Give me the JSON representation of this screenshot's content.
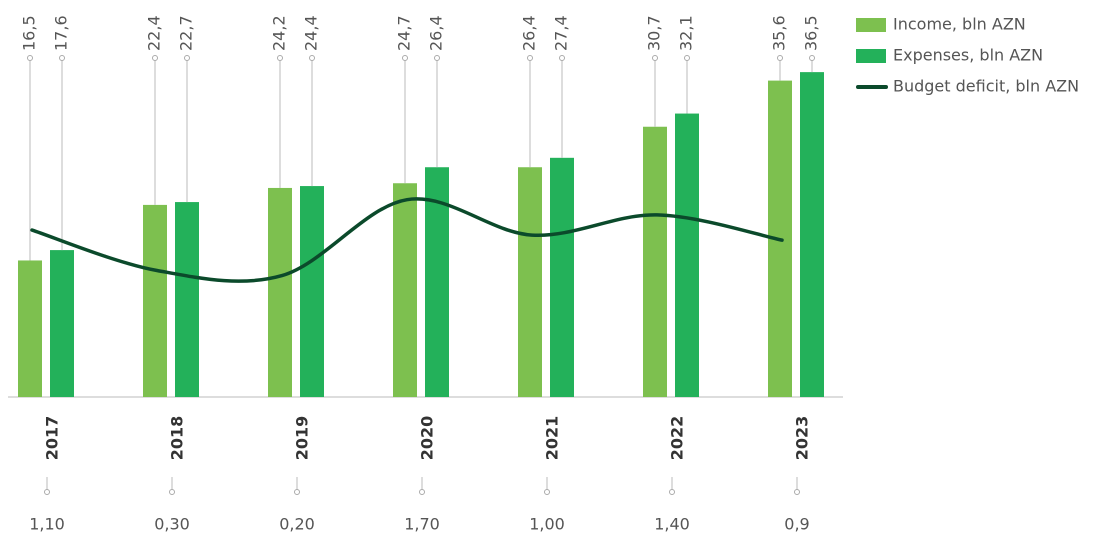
{
  "chart_data": {
    "type": "bar",
    "categories": [
      "2017",
      "2018",
      "2019",
      "2020",
      "2021",
      "2022",
      "2023"
    ],
    "series": [
      {
        "name": "Income, bln AZN",
        "color": "#7dc04f",
        "values": [
          16.5,
          22.4,
          24.2,
          24.7,
          26.4,
          30.7,
          35.6
        ],
        "value_labels": [
          "16,5",
          "22,4",
          "24,2",
          "24,7",
          "26,4",
          "30,7",
          "35,6"
        ]
      },
      {
        "name": "Expenses, bln AZN",
        "color": "#23b15a",
        "values": [
          17.6,
          22.7,
          24.4,
          26.4,
          27.4,
          32.1,
          36.5
        ],
        "value_labels": [
          "17,6",
          "22,7",
          "24,4",
          "26,4",
          "27,4",
          "32,1",
          "36,5"
        ]
      },
      {
        "name": "Budget deficit, bln AZN",
        "color": "#0b4a2b",
        "type": "line",
        "axis": "y2",
        "values": [
          1.1,
          0.3,
          0.2,
          1.7,
          1.0,
          1.4,
          0.9
        ],
        "value_labels": [
          "1,10",
          "0,30",
          "0,20",
          "1,70",
          "1,00",
          "1,40",
          "0,9"
        ]
      }
    ],
    "ylim": [
      2,
      38
    ],
    "y2lim": [
      -2.2,
      4.5
    ],
    "legend": "top-right"
  }
}
